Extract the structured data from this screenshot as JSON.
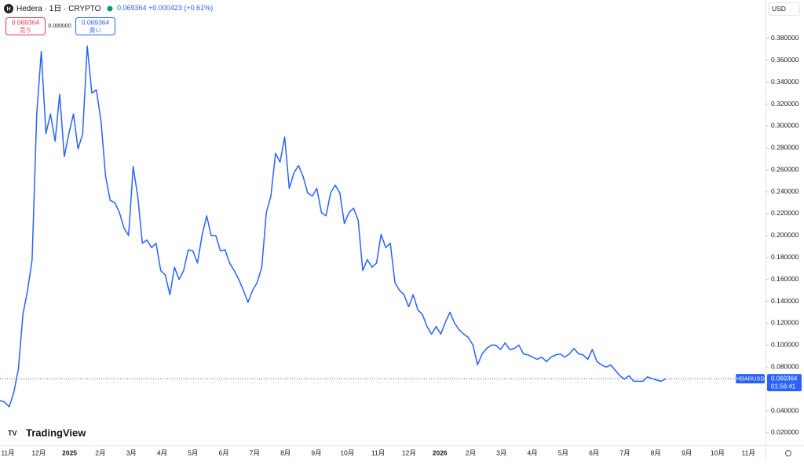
{
  "header": {
    "symbol": "Hedera",
    "interval": "1日",
    "exchange": "CRYPTO",
    "price": "0.069364",
    "change": "+0.000423",
    "change_pct": "(+0.61%)"
  },
  "trade": {
    "sell_price": "0.069364",
    "sell_label": "売り",
    "spread": "0.000000",
    "buy_price": "0.069364",
    "buy_label": "買い"
  },
  "currency": "USD",
  "logo": "TradingView",
  "chart_data": {
    "type": "line",
    "x_tick_labels": [
      "11月",
      "12月",
      "2025",
      "2月",
      "3月",
      "4月",
      "5月",
      "6月",
      "7月",
      "8月",
      "9月",
      "10月",
      "11月",
      "12月",
      "2026",
      "2月",
      "3月",
      "4月",
      "5月",
      "6月",
      "7月",
      "8月",
      "9月",
      "10月",
      "11月"
    ],
    "series": [
      {
        "name": "HBARUSD",
        "color": "#2962ff",
        "values": [
          0.0494,
          0.048,
          0.0437,
          0.0566,
          0.078,
          0.128,
          0.15,
          0.178,
          0.311,
          0.368,
          0.293,
          0.311,
          0.286,
          0.329,
          0.272,
          0.293,
          0.311,
          0.279,
          0.293,
          0.373,
          0.33,
          0.333,
          0.304,
          0.254,
          0.232,
          0.23,
          0.221,
          0.207,
          0.2,
          0.263,
          0.236,
          0.193,
          0.196,
          0.189,
          0.193,
          0.168,
          0.164,
          0.146,
          0.171,
          0.16,
          0.168,
          0.187,
          0.186,
          0.175,
          0.2,
          0.218,
          0.2,
          0.2,
          0.186,
          0.187,
          0.175,
          0.168,
          0.16,
          0.15,
          0.139,
          0.15,
          0.157,
          0.171,
          0.221,
          0.236,
          0.275,
          0.267,
          0.29,
          0.243,
          0.257,
          0.264,
          0.254,
          0.239,
          0.236,
          0.243,
          0.221,
          0.218,
          0.239,
          0.246,
          0.239,
          0.211,
          0.221,
          0.225,
          0.214,
          0.168,
          0.178,
          0.171,
          0.175,
          0.201,
          0.189,
          0.193,
          0.157,
          0.15,
          0.146,
          0.135,
          0.146,
          0.132,
          0.128,
          0.117,
          0.11,
          0.117,
          0.11,
          0.121,
          0.13,
          0.12,
          0.114,
          0.11,
          0.107,
          0.1,
          0.082,
          0.092,
          0.097,
          0.1,
          0.1,
          0.096,
          0.102,
          0.096,
          0.097,
          0.1,
          0.092,
          0.091,
          0.089,
          0.087,
          0.089,
          0.085,
          0.089,
          0.091,
          0.092,
          0.089,
          0.092,
          0.097,
          0.092,
          0.091,
          0.087,
          0.096,
          0.085,
          0.082,
          0.08,
          0.082,
          0.077,
          0.072,
          0.069,
          0.072,
          0.067,
          0.067,
          0.067,
          0.071,
          0.0695,
          0.068,
          0.067,
          0.069364
        ]
      }
    ],
    "ylim": [
      0.0085,
      0.415
    ],
    "yticks": [
      {
        "value": 0.02,
        "label": "0.020000"
      },
      {
        "value": 0.04,
        "label": "0.040000"
      },
      {
        "value": 0.06,
        "label": "0.060000"
      },
      {
        "value": 0.08,
        "label": "0.080000"
      },
      {
        "value": 0.1,
        "label": "0.100000"
      },
      {
        "value": 0.12,
        "label": "0.120000"
      },
      {
        "value": 0.14,
        "label": "0.140000"
      },
      {
        "value": 0.16,
        "label": "0.160000"
      },
      {
        "value": 0.18,
        "label": "0.180000"
      },
      {
        "value": 0.2,
        "label": "0.200000"
      },
      {
        "value": 0.22,
        "label": "0.220000"
      },
      {
        "value": 0.24,
        "label": "0.240000"
      },
      {
        "value": 0.26,
        "label": "0.260000"
      },
      {
        "value": 0.28,
        "label": "0.280000"
      },
      {
        "value": 0.3,
        "label": "0.300000"
      },
      {
        "value": 0.32,
        "label": "0.320000"
      },
      {
        "value": 0.34,
        "label": "0.340000"
      },
      {
        "value": 0.36,
        "label": "0.360000"
      },
      {
        "value": 0.38,
        "label": "0.380000"
      }
    ],
    "last_price": 0.069364,
    "last_price_label": "0.069364",
    "countdown": "01:56:41"
  }
}
